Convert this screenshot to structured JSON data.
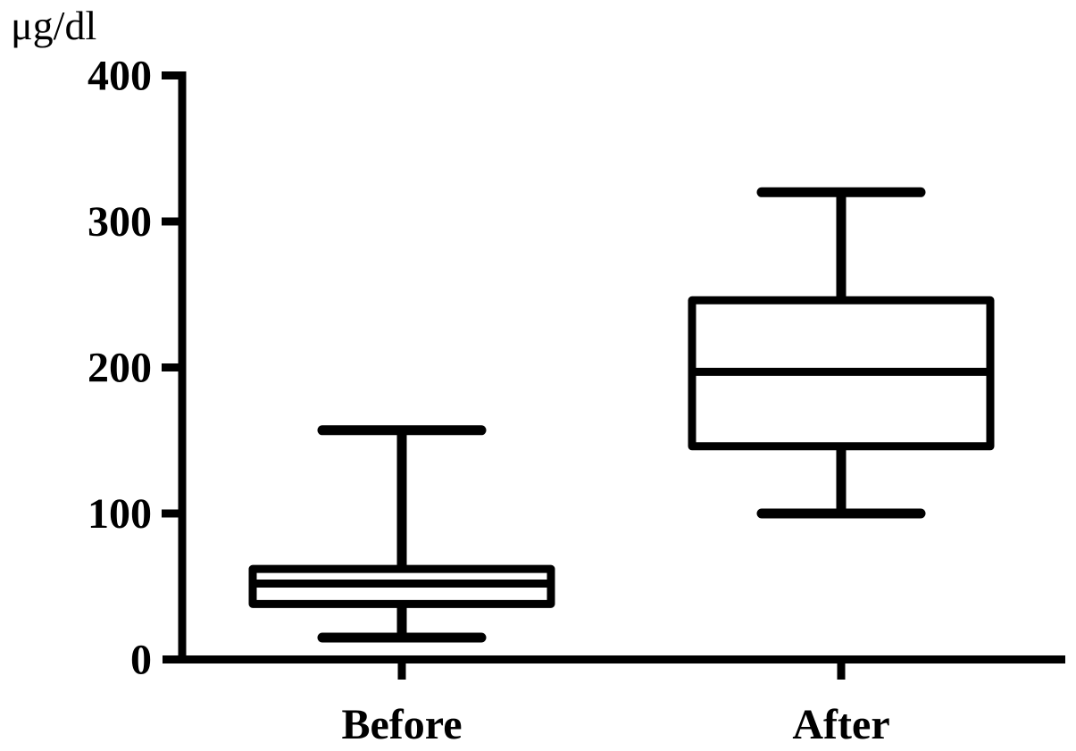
{
  "figure": {
    "unit_label": "μg/dl"
  },
  "chart_data": {
    "type": "boxplot",
    "title": "",
    "ylabel": "μg/dl",
    "xlabel": "",
    "ylim": [
      0,
      400
    ],
    "yticks": [
      0,
      100,
      200,
      300,
      400
    ],
    "categories": [
      "Before",
      "After"
    ],
    "series": [
      {
        "name": "Before",
        "min": 15,
        "q1": 38,
        "median": 52,
        "q3": 62,
        "max": 157
      },
      {
        "name": "After",
        "min": 100,
        "q1": 146,
        "median": 197,
        "q3": 246,
        "max": 320
      }
    ],
    "style": {
      "stroke_color": "#000000",
      "box_fill": "#ffffff",
      "background": "#ffffff",
      "grid": false,
      "legend": "none"
    }
  }
}
